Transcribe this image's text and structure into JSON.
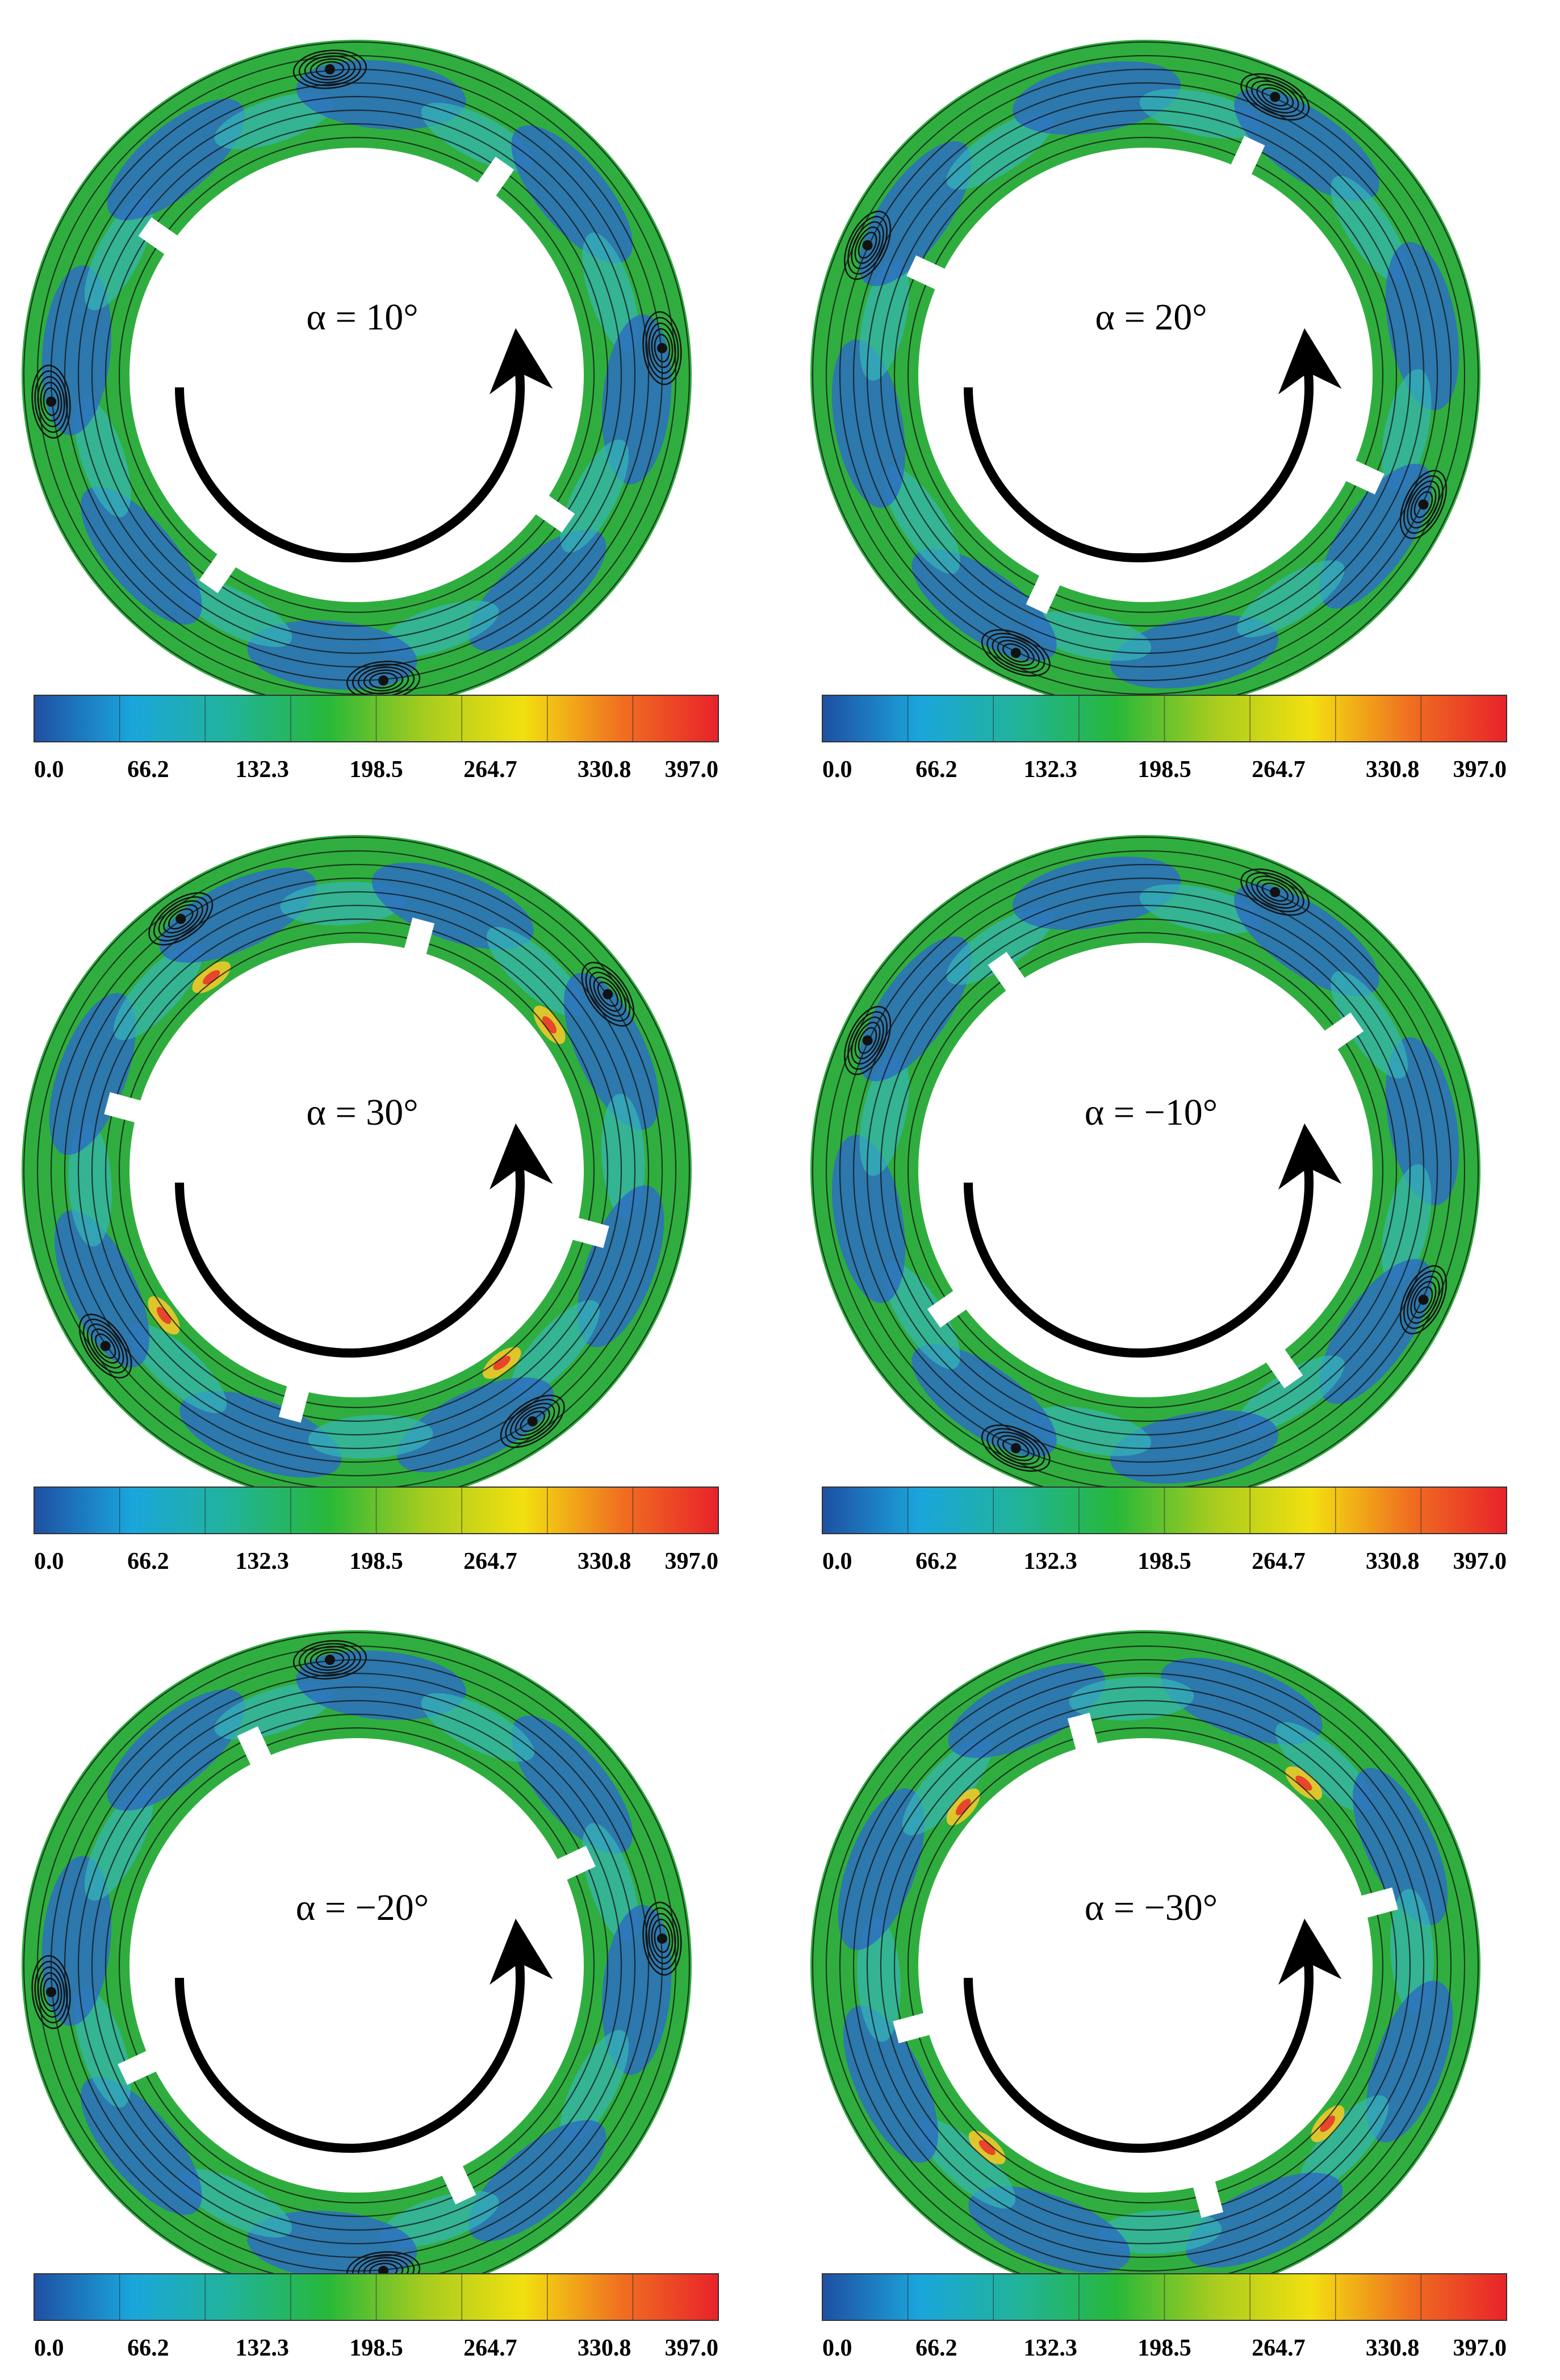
{
  "colorbar": {
    "tick_labels": [
      "0.0",
      "66.2",
      "132.3",
      "198.5",
      "264.7",
      "330.8",
      "397.0"
    ],
    "stops": [
      "#1f4fa3",
      "#1aa6dc",
      "#21b39a",
      "#27b83a",
      "#a7cc1f",
      "#f2e010",
      "#f07020",
      "#e8222a"
    ]
  },
  "palette": {
    "ring_base": "#2fae3f",
    "low_velocity": "#2d6fc1",
    "mid_velocity": "#36b6b8",
    "high_velocity": "#f0c92a",
    "peak_velocity": "#e8462a",
    "streamline": "#111111",
    "gap": "#ffffff"
  },
  "panels": [
    {
      "label": "α = 10°",
      "angle": 10,
      "dark_cells": 4
    },
    {
      "label": "α = 20°",
      "angle": 20,
      "dark_cells": 4
    },
    {
      "label": "α = 30°",
      "angle": 30,
      "dark_cells": 4
    },
    {
      "label": "α = −10°",
      "angle": -10,
      "dark_cells": 4
    },
    {
      "label": "α = −20°",
      "angle": -20,
      "dark_cells": 4
    },
    {
      "label": "α = −30°",
      "angle": -30,
      "dark_cells": 0
    }
  ]
}
